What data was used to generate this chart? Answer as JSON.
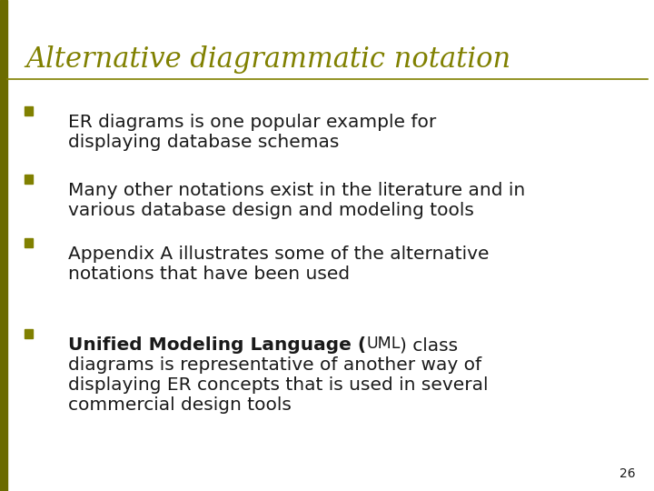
{
  "title": "Alternative diagrammatic notation",
  "title_color": "#808000",
  "title_fontsize": 22,
  "left_bar_color": "#6B6B00",
  "separator_color": "#808000",
  "bg_color": "#FFFFFF",
  "bullet_color": "#808000",
  "text_color": "#1a1a1a",
  "page_number": "26",
  "body_fontsize": 14.5,
  "bullet_items": [
    {
      "lines": [
        "ER diagrams is one popular example for",
        "displaying database schemas"
      ],
      "has_bold": false
    },
    {
      "lines": [
        "Many other notations exist in the literature and in",
        "various database design and modeling tools"
      ],
      "has_bold": false
    },
    {
      "lines": [
        "Appendix A illustrates some of the alternative",
        "notations that have been used"
      ],
      "has_bold": false
    },
    {
      "lines": [
        "diagrams is representative of another way of",
        "displaying ER concepts that is used in several",
        "commercial design tools"
      ],
      "has_bold": true,
      "bold_text": "Unified Modeling Language (",
      "uml_text": "UML",
      "after_uml": ") class"
    }
  ]
}
